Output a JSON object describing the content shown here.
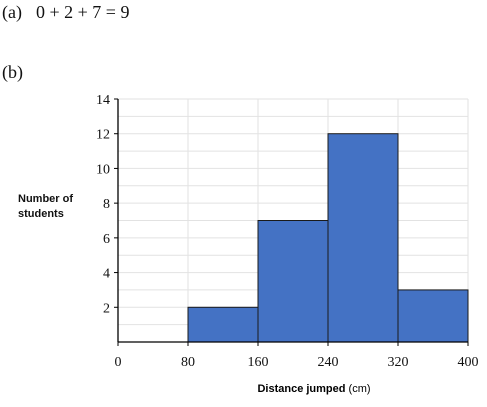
{
  "question": {
    "part_a": {
      "label": "(a)",
      "text": "0 + 2 + 7 = 9"
    },
    "part_b": {
      "label": "(b)"
    }
  },
  "chart_data": {
    "type": "histogram",
    "xlabel": "Distance jumped",
    "xlabel_unit": "(cm)",
    "ylabel_lines": [
      "Number of",
      "students"
    ],
    "x_ticks": [
      0,
      80,
      160,
      240,
      320,
      400
    ],
    "y_ticks": [
      2,
      4,
      6,
      8,
      10,
      12,
      14
    ],
    "xlim": [
      0,
      400
    ],
    "ylim": [
      0,
      14
    ],
    "grid": true,
    "bar_color": "#4472C4",
    "bins": [
      {
        "from": 80,
        "to": 160,
        "value": 2
      },
      {
        "from": 160,
        "to": 240,
        "value": 7
      },
      {
        "from": 240,
        "to": 320,
        "value": 12
      },
      {
        "from": 320,
        "to": 400,
        "value": 3
      }
    ]
  }
}
